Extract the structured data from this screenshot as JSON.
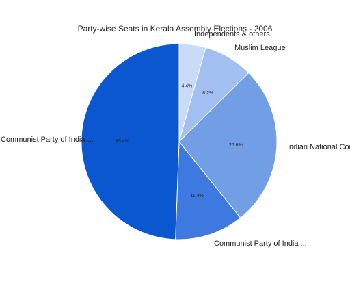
{
  "chart_data": {
    "type": "pie",
    "title": "Party-wise Seats in Kerala Assembly Elections - 2006",
    "slices": [
      {
        "label": "Independents & others",
        "value": 4.4,
        "display": "4.4%",
        "color": "#c9dbf7"
      },
      {
        "label": "Muslim League",
        "value": 8.2,
        "display": "8.2%",
        "color": "#a1bff0"
      },
      {
        "label": "Indian National Congres",
        "value": 26.6,
        "display": "26.6%",
        "color": "#729ee6"
      },
      {
        "label": "Communist Party of India ...",
        "value": 11.4,
        "display": "11.4%",
        "color": "#3d79df"
      },
      {
        "label": "Communist Party of India ...",
        "value": 49.4,
        "display": "49.4%",
        "color": "#0b57d0"
      }
    ]
  }
}
